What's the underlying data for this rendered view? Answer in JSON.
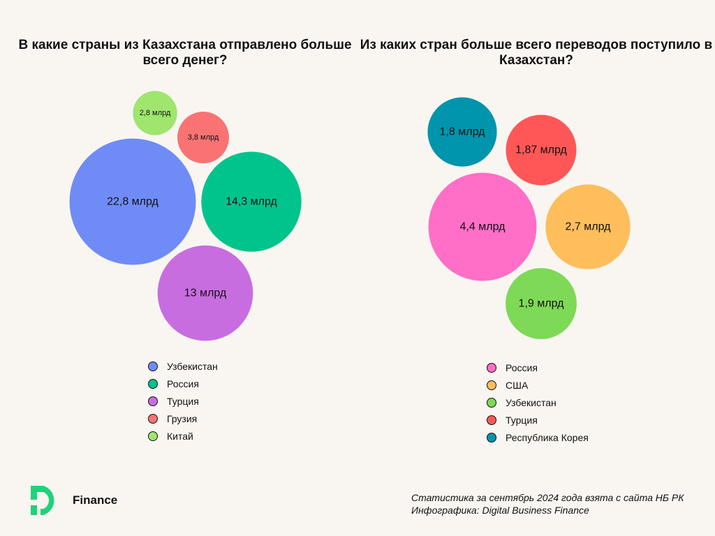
{
  "chart_data": [
    {
      "type": "bubble",
      "title": "В какие страны из Казахстана отправлено больше всего денег?",
      "unit": "млрд",
      "categories": [
        "Узбекистан",
        "Россия",
        "Турция",
        "Грузия",
        "Китай"
      ],
      "values": [
        22.8,
        14.3,
        13,
        3.8,
        2.8
      ],
      "labels": [
        "22,8 млрд",
        "14,3 млрд",
        "13 млрд",
        "3,8 млрд",
        "2,8 млрд"
      ],
      "colors": [
        "#6f8cf6",
        "#00c48c",
        "#c86de0",
        "#f97373",
        "#9fe56e"
      ],
      "legend_position": "bottom"
    },
    {
      "type": "bubble",
      "title": "Из каких стран больше всего переводов поступило в Казахстан?",
      "unit": "млрд",
      "categories": [
        "Россия",
        "США",
        "Узбекистан",
        "Турция",
        "Республика Корея"
      ],
      "values": [
        4.4,
        2.7,
        1.9,
        1.87,
        1.8
      ],
      "labels": [
        "4,4 млрд",
        "2,7 млрд",
        "1,9 млрд",
        "1,87 млрд",
        "1,8 млрд"
      ],
      "colors": [
        "#ff6ec7",
        "#ffbe5c",
        "#7ed957",
        "#ff5757",
        "#0095ad"
      ],
      "legend_position": "bottom"
    }
  ],
  "brand": {
    "name": "Finance",
    "accent": "#1fd27a"
  },
  "footer": {
    "line1": "Статистика за сентябрь 2024 года взята с сайта НБ РК",
    "line2": "Инфографика: Digital Business Finance"
  }
}
